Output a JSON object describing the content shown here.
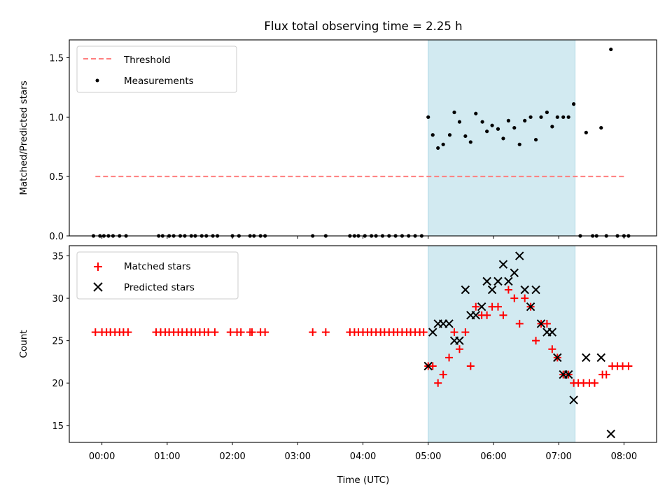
{
  "chart_data": [
    {
      "type": "scatter",
      "title": "Flux total observing time = 2.25 h",
      "ylabel": "Matched/Predicted stars",
      "xlabel": "",
      "xlim": [
        -0.5,
        8.5
      ],
      "ylim": [
        0,
        1.65
      ],
      "yticks": [
        0.0,
        0.5,
        1.0,
        1.5
      ],
      "ytick_labels": [
        "0.0",
        "0.5",
        "1.0",
        "1.5"
      ],
      "grid": false,
      "legend_position": "top-left",
      "highlight_span": [
        5.0,
        7.25
      ],
      "highlight_color": "#add8e6",
      "threshold": {
        "name": "Threshold",
        "y": 0.5,
        "x": [
          -0.1,
          8.0
        ],
        "color": "#ff7f7f",
        "style": "dashed"
      },
      "series": [
        {
          "name": "Measurements",
          "color": "#000000",
          "marker": "dot",
          "points": [
            [
              -0.13,
              0
            ],
            [
              -0.03,
              0
            ],
            [
              0.03,
              0
            ],
            [
              0.1,
              0
            ],
            [
              0.17,
              0
            ],
            [
              0.27,
              0
            ],
            [
              0.37,
              0
            ],
            [
              0.87,
              0
            ],
            [
              0.93,
              0
            ],
            [
              1.03,
              0
            ],
            [
              1.1,
              0
            ],
            [
              1.2,
              0
            ],
            [
              1.27,
              0
            ],
            [
              1.37,
              0
            ],
            [
              1.43,
              0
            ],
            [
              1.53,
              0
            ],
            [
              1.6,
              0
            ],
            [
              1.7,
              0
            ],
            [
              1.77,
              0
            ],
            [
              2.0,
              0
            ],
            [
              2.1,
              0
            ],
            [
              2.27,
              0
            ],
            [
              2.33,
              0
            ],
            [
              2.43,
              0
            ],
            [
              2.5,
              0
            ],
            [
              3.23,
              0
            ],
            [
              3.43,
              0
            ],
            [
              3.8,
              0
            ],
            [
              3.87,
              0
            ],
            [
              3.93,
              0
            ],
            [
              4.03,
              0
            ],
            [
              4.13,
              0
            ],
            [
              4.2,
              0
            ],
            [
              4.3,
              0
            ],
            [
              4.4,
              0
            ],
            [
              4.5,
              0
            ],
            [
              4.6,
              0
            ],
            [
              4.7,
              0
            ],
            [
              4.8,
              0
            ],
            [
              4.9,
              0
            ],
            [
              5.0,
              1.0
            ],
            [
              5.07,
              0.85
            ],
            [
              5.15,
              0.74
            ],
            [
              5.23,
              0.77
            ],
            [
              5.33,
              0.85
            ],
            [
              5.4,
              1.04
            ],
            [
              5.48,
              0.96
            ],
            [
              5.57,
              0.84
            ],
            [
              5.65,
              0.79
            ],
            [
              5.73,
              1.03
            ],
            [
              5.83,
              0.96
            ],
            [
              5.9,
              0.88
            ],
            [
              5.98,
              0.93
            ],
            [
              6.07,
              0.9
            ],
            [
              6.15,
              0.82
            ],
            [
              6.23,
              0.97
            ],
            [
              6.32,
              0.91
            ],
            [
              6.4,
              0.77
            ],
            [
              6.48,
              0.97
            ],
            [
              6.57,
              1.0
            ],
            [
              6.65,
              0.81
            ],
            [
              6.73,
              1.0
            ],
            [
              6.82,
              1.04
            ],
            [
              6.9,
              0.92
            ],
            [
              6.98,
              1.0
            ],
            [
              7.07,
              1.0
            ],
            [
              7.15,
              1.0
            ],
            [
              7.23,
              1.11
            ],
            [
              7.33,
              0
            ],
            [
              7.42,
              0.87
            ],
            [
              7.52,
              0
            ],
            [
              7.58,
              0
            ],
            [
              7.65,
              0.91
            ],
            [
              7.73,
              0
            ],
            [
              7.8,
              1.57
            ],
            [
              7.9,
              0
            ],
            [
              8.0,
              0
            ],
            [
              8.07,
              0
            ]
          ]
        }
      ]
    },
    {
      "type": "scatter",
      "title": "",
      "xlabel": "Time (UTC)",
      "ylabel": "Count",
      "xlim": [
        -0.5,
        8.5
      ],
      "ylim": [
        13,
        36.2
      ],
      "xticks": [
        0,
        1,
        2,
        3,
        4,
        5,
        6,
        7,
        8
      ],
      "xtick_labels": [
        "00:00",
        "01:00",
        "02:00",
        "03:00",
        "04:00",
        "05:00",
        "06:00",
        "07:00",
        "08:00"
      ],
      "yticks": [
        15,
        20,
        25,
        30,
        35
      ],
      "ytick_labels": [
        "15",
        "20",
        "25",
        "30",
        "35"
      ],
      "grid": false,
      "legend_position": "top-left",
      "highlight_span": [
        5.0,
        7.25
      ],
      "highlight_color": "#add8e6",
      "series": [
        {
          "name": "Matched stars",
          "color": "#ff0000",
          "marker": "plus",
          "points": [
            [
              -0.1,
              26
            ],
            [
              0.0,
              26
            ],
            [
              0.07,
              26
            ],
            [
              0.13,
              26
            ],
            [
              0.2,
              26
            ],
            [
              0.27,
              26
            ],
            [
              0.33,
              26
            ],
            [
              0.4,
              26
            ],
            [
              0.83,
              26
            ],
            [
              0.9,
              26
            ],
            [
              0.97,
              26
            ],
            [
              1.03,
              26
            ],
            [
              1.1,
              26
            ],
            [
              1.17,
              26
            ],
            [
              1.23,
              26
            ],
            [
              1.3,
              26
            ],
            [
              1.37,
              26
            ],
            [
              1.43,
              26
            ],
            [
              1.5,
              26
            ],
            [
              1.57,
              26
            ],
            [
              1.63,
              26
            ],
            [
              1.73,
              26
            ],
            [
              1.97,
              26
            ],
            [
              2.07,
              26
            ],
            [
              2.13,
              26
            ],
            [
              2.27,
              26
            ],
            [
              2.3,
              26
            ],
            [
              2.43,
              26
            ],
            [
              2.5,
              26
            ],
            [
              3.23,
              26
            ],
            [
              3.43,
              26
            ],
            [
              3.8,
              26
            ],
            [
              3.87,
              26
            ],
            [
              3.93,
              26
            ],
            [
              4.0,
              26
            ],
            [
              4.07,
              26
            ],
            [
              4.13,
              26
            ],
            [
              4.2,
              26
            ],
            [
              4.27,
              26
            ],
            [
              4.33,
              26
            ],
            [
              4.4,
              26
            ],
            [
              4.47,
              26
            ],
            [
              4.53,
              26
            ],
            [
              4.6,
              26
            ],
            [
              4.67,
              26
            ],
            [
              4.73,
              26
            ],
            [
              4.8,
              26
            ],
            [
              4.87,
              26
            ],
            [
              4.93,
              26
            ],
            [
              5.0,
              22
            ],
            [
              5.07,
              22
            ],
            [
              5.15,
              20
            ],
            [
              5.23,
              21
            ],
            [
              5.32,
              23
            ],
            [
              5.4,
              26
            ],
            [
              5.48,
              24
            ],
            [
              5.57,
              26
            ],
            [
              5.65,
              22
            ],
            [
              5.73,
              29
            ],
            [
              5.82,
              28
            ],
            [
              5.9,
              28
            ],
            [
              5.98,
              29
            ],
            [
              6.07,
              29
            ],
            [
              6.15,
              28
            ],
            [
              6.23,
              31
            ],
            [
              6.32,
              30
            ],
            [
              6.4,
              27
            ],
            [
              6.48,
              30
            ],
            [
              6.57,
              29
            ],
            [
              6.65,
              25
            ],
            [
              6.73,
              27
            ],
            [
              6.82,
              27
            ],
            [
              6.9,
              24
            ],
            [
              6.98,
              23
            ],
            [
              7.07,
              21
            ],
            [
              7.15,
              21
            ],
            [
              7.23,
              20
            ],
            [
              7.3,
              20
            ],
            [
              7.38,
              20
            ],
            [
              7.47,
              20
            ],
            [
              7.55,
              20
            ],
            [
              7.67,
              21
            ],
            [
              7.73,
              21
            ],
            [
              7.82,
              22
            ],
            [
              7.9,
              22
            ],
            [
              7.98,
              22
            ],
            [
              8.07,
              22
            ]
          ]
        },
        {
          "name": "Predicted stars",
          "color": "#000000",
          "marker": "x",
          "points": [
            [
              5.0,
              22
            ],
            [
              5.07,
              26
            ],
            [
              5.15,
              27
            ],
            [
              5.23,
              27
            ],
            [
              5.32,
              27
            ],
            [
              5.4,
              25
            ],
            [
              5.48,
              25
            ],
            [
              5.57,
              31
            ],
            [
              5.65,
              28
            ],
            [
              5.73,
              28
            ],
            [
              5.82,
              29
            ],
            [
              5.9,
              32
            ],
            [
              5.98,
              31
            ],
            [
              6.07,
              32
            ],
            [
              6.15,
              34
            ],
            [
              6.23,
              32
            ],
            [
              6.32,
              33
            ],
            [
              6.4,
              35
            ],
            [
              6.48,
              31
            ],
            [
              6.57,
              29
            ],
            [
              6.65,
              31
            ],
            [
              6.73,
              27
            ],
            [
              6.82,
              26
            ],
            [
              6.9,
              26
            ],
            [
              6.98,
              23
            ],
            [
              7.07,
              21
            ],
            [
              7.15,
              21
            ],
            [
              7.23,
              18
            ],
            [
              7.42,
              23
            ],
            [
              7.65,
              23
            ],
            [
              7.8,
              14
            ]
          ]
        }
      ]
    }
  ]
}
